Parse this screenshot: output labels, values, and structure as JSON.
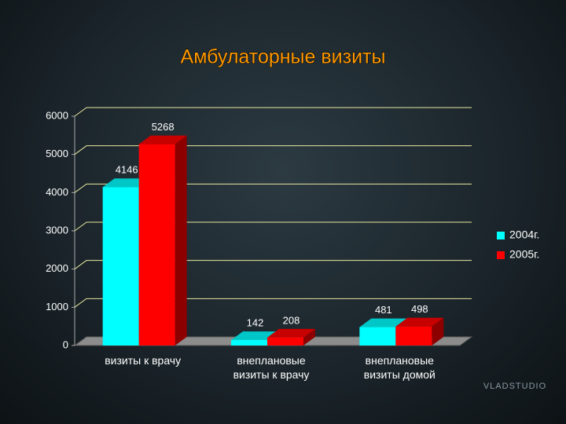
{
  "chart_data": {
    "type": "bar3d",
    "title": "Амбулаторные визиты",
    "categories": [
      "визиты к врачу",
      "внеплановые визиты к врачу",
      "внеплановые визиты домой"
    ],
    "series": [
      {
        "name": "2004г.",
        "color": "#00ffff",
        "values": [
          4146,
          142,
          481
        ]
      },
      {
        "name": "2005г.",
        "color": "#ff0000",
        "values": [
          5268,
          208,
          498
        ]
      }
    ],
    "ylim": [
      0,
      6000
    ],
    "yticks": [
      0,
      1000,
      2000,
      3000,
      4000,
      5000,
      6000
    ],
    "grid": true,
    "legend": "right"
  },
  "watermark": "VLADSTUDIO"
}
